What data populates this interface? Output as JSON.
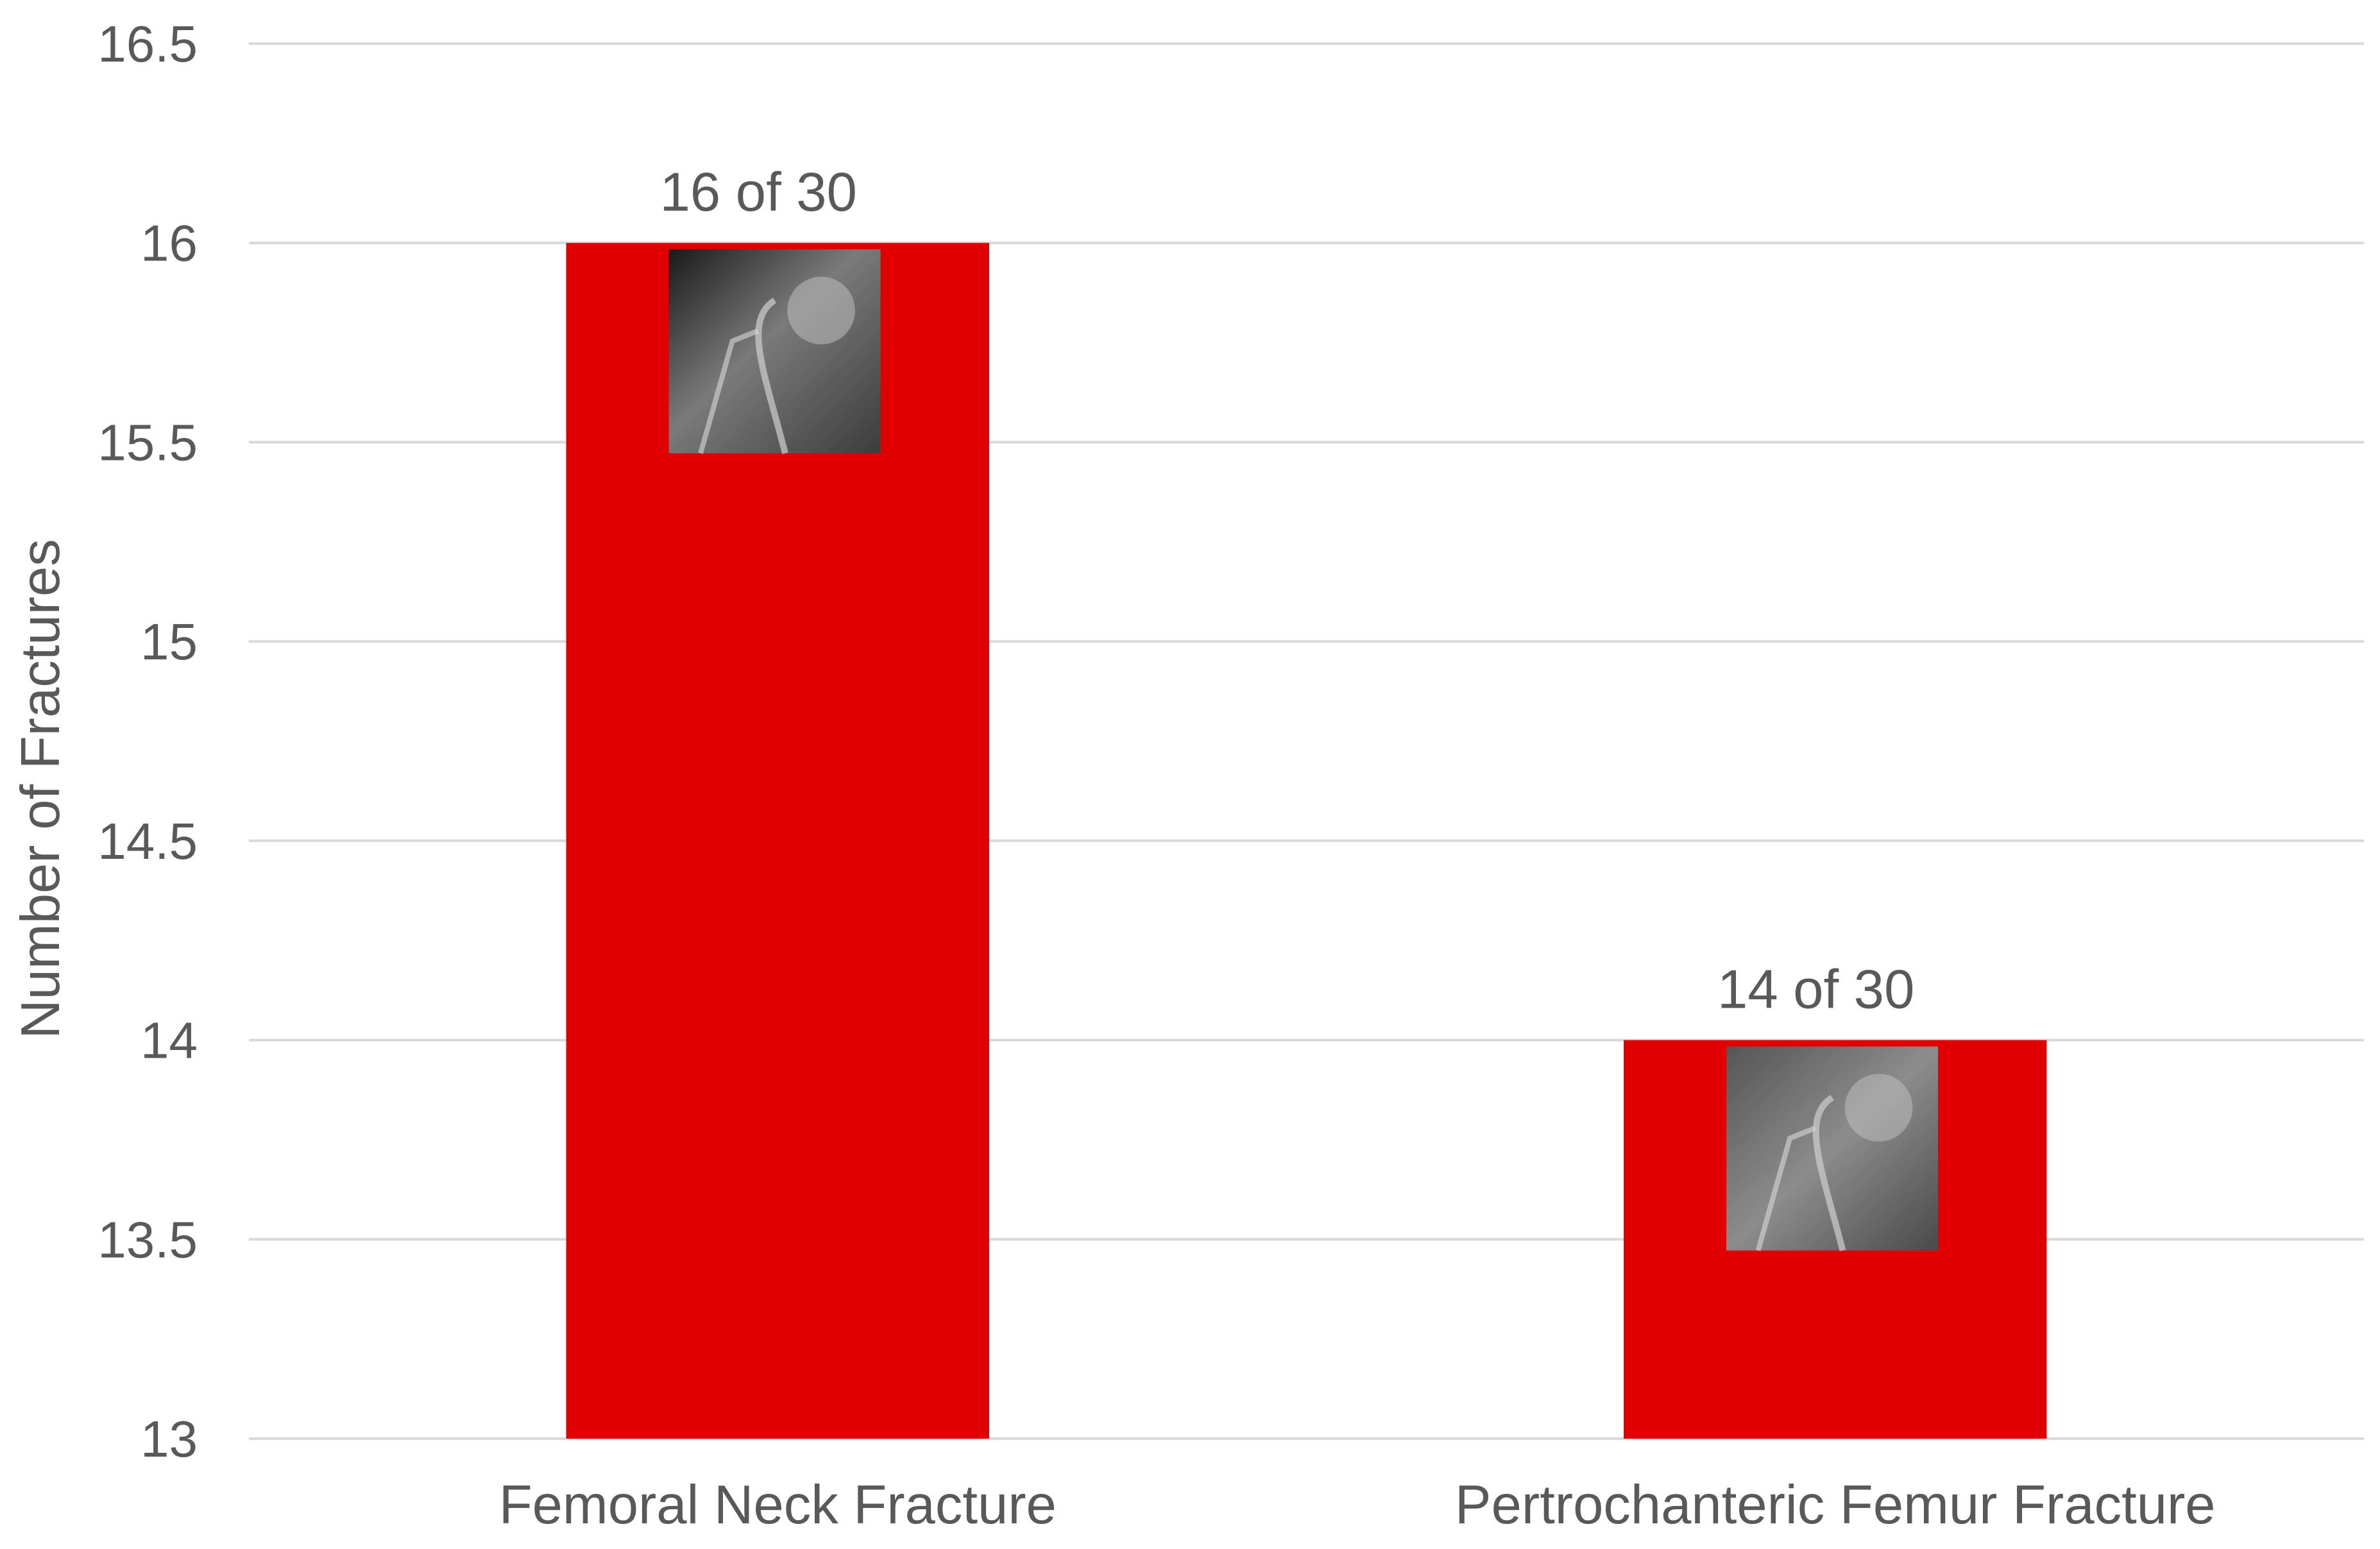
{
  "chart_data": {
    "type": "bar",
    "categories": [
      "Femoral Neck Fracture",
      "Pertrochanteric Femur Fracture"
    ],
    "values": [
      16,
      14
    ],
    "data_labels": [
      "16 of 30",
      "14 of 30"
    ],
    "title": "",
    "xlabel": "",
    "ylabel": "Number of Fractures",
    "ylim": [
      13,
      16.5
    ],
    "yticks": [
      "13",
      "13.5",
      "14",
      "14.5",
      "15",
      "15.5",
      "16",
      "16.5"
    ],
    "ytick_values": [
      13,
      13.5,
      14,
      14.5,
      15,
      15.5,
      16,
      16.5
    ],
    "grid": true,
    "legend": "none",
    "bar_color": "#e00000",
    "bar_image": "x-ray-image"
  }
}
